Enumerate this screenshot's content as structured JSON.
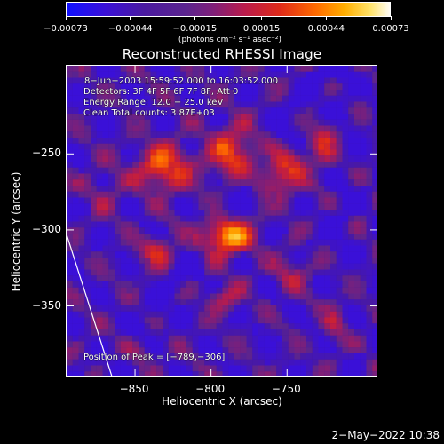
{
  "chart_data": {
    "type": "heatmap",
    "title": "Reconstructed RHESSI Image",
    "xlabel": "Heliocentric X (arcsec)",
    "ylabel": "Heliocentric Y (arcsec)",
    "xlim": [
      -895,
      -690
    ],
    "ylim": [
      -397,
      -192
    ],
    "x_ticks": [
      {
        "value": -850,
        "label": "−850"
      },
      {
        "value": -800,
        "label": "−800"
      },
      {
        "value": -750,
        "label": "−750"
      }
    ],
    "y_ticks": [
      {
        "value": -250,
        "label": "−250"
      },
      {
        "value": -300,
        "label": "−300"
      },
      {
        "value": -350,
        "label": "−350"
      }
    ],
    "colorbar": {
      "unit": "(photons cm⁻² s⁻¹ asec⁻²)",
      "ticks": [
        {
          "value": -0.00073,
          "label": "−0.00073"
        },
        {
          "value": -0.00044,
          "label": "−0.00044"
        },
        {
          "value": -0.00015,
          "label": "−0.00015"
        },
        {
          "value": 0.00015,
          "label": "0.00015"
        },
        {
          "value": 0.00044,
          "label": "0.00044"
        },
        {
          "value": 0.00073,
          "label": "0.00073"
        }
      ],
      "range": [
        -0.00073,
        0.00073
      ],
      "colors": [
        "#1010ff",
        "#4a1aa0",
        "#7d1f7a",
        "#df2a19",
        "#ff6a00",
        "#ffae00",
        "#fffdf6"
      ]
    },
    "info_lines": [
      "8−Jun−2003 15:59:52.000 to 16:03:52.000",
      "Detectors: 3F 4F 5F 6F 7F 8F, Att 0",
      "Energy Range: 12.0 − 25.0 keV",
      "Clean     Total counts: 3.87E+03"
    ],
    "peak_label": "Position of Peak = [−789,−306]",
    "peak_position": [
      -789,
      -306
    ],
    "limb_line": [
      {
        "x": -895,
        "y": -303
      },
      {
        "x": -865,
        "y": -397
      }
    ],
    "heatmap_grid": {
      "x_range": [
        -895,
        -690
      ],
      "y_range": [
        -397,
        -192
      ],
      "pixel_size_arcsec": 4
    }
  },
  "footer": {
    "timestamp": "2−May−2022 10:38"
  }
}
